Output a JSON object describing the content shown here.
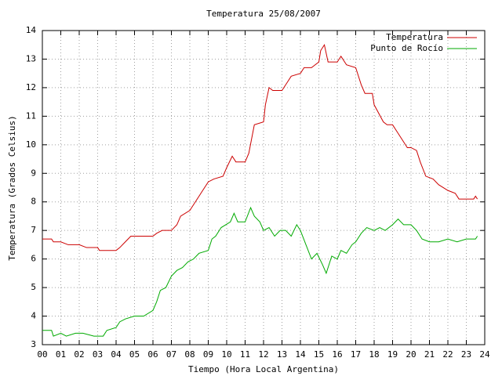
{
  "chart_data": {
    "type": "line",
    "title": "Temperatura 25/08/2007",
    "x_label": "Tiempo (Hora Local Argentina)",
    "y_label": "Temperatura (Grados Celsius)",
    "xlim": [
      0,
      24
    ],
    "ylim": [
      3,
      14
    ],
    "xticks": [
      {
        "value": 0,
        "label": "00"
      },
      {
        "value": 1,
        "label": "01"
      },
      {
        "value": 2,
        "label": "02"
      },
      {
        "value": 3,
        "label": "03"
      },
      {
        "value": 4,
        "label": "04"
      },
      {
        "value": 5,
        "label": "05"
      },
      {
        "value": 6,
        "label": "06"
      },
      {
        "value": 7,
        "label": "07"
      },
      {
        "value": 8,
        "label": "08"
      },
      {
        "value": 9,
        "label": "09"
      },
      10,
      11,
      12,
      13,
      14,
      15,
      16,
      17,
      18,
      19,
      20,
      21,
      22,
      23,
      24
    ],
    "yticks": [
      3,
      4,
      5,
      6,
      7,
      8,
      9,
      10,
      11,
      12,
      13,
      14
    ],
    "grid": true,
    "legend": "top-right",
    "series": [
      {
        "name": "Temperatura",
        "color": "#cc0000",
        "x": [
          0,
          0.5,
          0.6,
          1.0,
          1.4,
          2.0,
          2.4,
          3,
          3.1,
          3.5,
          4,
          4.2,
          4.5,
          4.8,
          5,
          5.5,
          6,
          6.2,
          6.5,
          7,
          7.3,
          7.5,
          8,
          8.3,
          8.6,
          9,
          9.3,
          9.8,
          10,
          10.3,
          10.5,
          11,
          11.2,
          11.5,
          12,
          12.1,
          12.3,
          12.5,
          13,
          13.3,
          13.5,
          14,
          14.2,
          14.6,
          15,
          15.1,
          15.3,
          15.5,
          16,
          16.2,
          16.5,
          17,
          17.3,
          17.5,
          17.9,
          18,
          18.5,
          18.7,
          19,
          19.4,
          19.8,
          20,
          20.3,
          20.5,
          20.8,
          21.2,
          21.5,
          22,
          22.4,
          22.6,
          23,
          23.4,
          23.5,
          23.6
        ],
        "values": [
          6.7,
          6.7,
          6.6,
          6.6,
          6.5,
          6.5,
          6.4,
          6.4,
          6.3,
          6.3,
          6.3,
          6.4,
          6.6,
          6.8,
          6.8,
          6.8,
          6.8,
          6.9,
          7.0,
          7.0,
          7.2,
          7.5,
          7.7,
          8.0,
          8.3,
          8.7,
          8.8,
          8.9,
          9.2,
          9.6,
          9.4,
          9.4,
          9.7,
          10.7,
          10.8,
          11.4,
          12.0,
          11.9,
          11.9,
          12.2,
          12.4,
          12.5,
          12.7,
          12.7,
          12.9,
          13.3,
          13.5,
          12.9,
          12.9,
          13.1,
          12.8,
          12.7,
          12.1,
          11.8,
          11.8,
          11.4,
          10.8,
          10.7,
          10.7,
          10.3,
          9.9,
          9.9,
          9.8,
          9.4,
          8.9,
          8.8,
          8.6,
          8.4,
          8.3,
          8.1,
          8.1,
          8.1,
          8.2,
          8.1
        ]
      },
      {
        "name": "Punto de Rocío",
        "color": "#00aa00",
        "x": [
          0,
          0.5,
          0.6,
          1,
          1.3,
          1.8,
          2.2,
          2.8,
          3.3,
          3.5,
          4,
          4.2,
          4.5,
          5,
          5.5,
          6,
          6.2,
          6.4,
          6.7,
          7,
          7.3,
          7.6,
          7.9,
          8.2,
          8.5,
          9,
          9.2,
          9.4,
          9.7,
          10.2,
          10.4,
          10.6,
          11,
          11.3,
          11.5,
          11.8,
          12,
          12.3,
          12.6,
          12.9,
          13.2,
          13.5,
          13.8,
          14,
          14.3,
          14.6,
          14.9,
          15.2,
          15.4,
          15.7,
          16,
          16.2,
          16.5,
          16.8,
          17,
          17.3,
          17.6,
          18,
          18.3,
          18.6,
          19,
          19.3,
          19.6,
          20,
          20.3,
          20.6,
          21,
          21.5,
          22,
          22.5,
          23,
          23.5,
          23.6
        ],
        "values": [
          3.5,
          3.5,
          3.3,
          3.4,
          3.3,
          3.4,
          3.4,
          3.3,
          3.3,
          3.5,
          3.6,
          3.8,
          3.9,
          4.0,
          4.0,
          4.2,
          4.5,
          4.9,
          5.0,
          5.4,
          5.6,
          5.7,
          5.9,
          6.0,
          6.2,
          6.3,
          6.7,
          6.8,
          7.1,
          7.3,
          7.6,
          7.3,
          7.3,
          7.8,
          7.5,
          7.3,
          7.0,
          7.1,
          6.8,
          7.0,
          7.0,
          6.8,
          7.2,
          7.0,
          6.5,
          6.0,
          6.2,
          5.8,
          5.5,
          6.1,
          6.0,
          6.3,
          6.2,
          6.5,
          6.6,
          6.9,
          7.1,
          7.0,
          7.1,
          7.0,
          7.2,
          7.4,
          7.2,
          7.2,
          7.0,
          6.7,
          6.6,
          6.6,
          6.7,
          6.6,
          6.7,
          6.7,
          6.8
        ]
      }
    ]
  }
}
